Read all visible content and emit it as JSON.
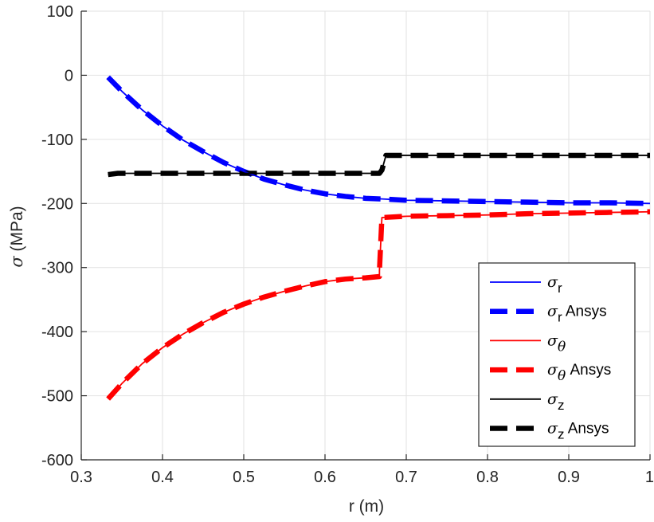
{
  "chart_data": {
    "type": "line",
    "xlabel": "r (m)",
    "ylabel_symbol": "σ",
    "ylabel_rest": " (MPa)",
    "xlim": [
      0.3,
      1.0
    ],
    "ylim": [
      -600,
      100
    ],
    "xticks": [
      0.3,
      0.4,
      0.5,
      0.6,
      0.7,
      0.8,
      0.9,
      1.0
    ],
    "xtick_labels": [
      "0.3",
      "0.4",
      "0.5",
      "0.6",
      "0.7",
      "0.8",
      "0.9",
      "1"
    ],
    "yticks": [
      100,
      0,
      -100,
      -200,
      -300,
      -400,
      -500,
      -600
    ],
    "ytick_labels": [
      "100",
      "0",
      "-100",
      "-200",
      "-300",
      "-400",
      "-500",
      "-600"
    ],
    "grid": true,
    "legend_position": "lower-right",
    "series": [
      {
        "name": "σr",
        "symbol": "σ",
        "sub": "r",
        "suffix": "",
        "color": "#0000ff",
        "style": "solid",
        "x": [
          0.333,
          0.35,
          0.375,
          0.4,
          0.425,
          0.45,
          0.475,
          0.5,
          0.525,
          0.55,
          0.575,
          0.6,
          0.625,
          0.65,
          0.67,
          0.7,
          0.75,
          0.8,
          0.85,
          0.9,
          0.95,
          1.0
        ],
        "y": [
          -3,
          -25,
          -54,
          -79,
          -101,
          -119,
          -136,
          -150,
          -162,
          -171,
          -179,
          -185,
          -189,
          -192,
          -193,
          -195,
          -196,
          -197,
          -198,
          -199,
          -199,
          -200
        ]
      },
      {
        "name": "σr Ansys",
        "symbol": "σ",
        "sub": "r",
        "suffix": " Ansys",
        "color": "#0000ff",
        "style": "dashed",
        "x": [
          0.333,
          0.35,
          0.375,
          0.4,
          0.425,
          0.45,
          0.475,
          0.5,
          0.525,
          0.55,
          0.575,
          0.6,
          0.625,
          0.65,
          0.67,
          0.7,
          0.75,
          0.8,
          0.85,
          0.9,
          0.95,
          1.0
        ],
        "y": [
          -3,
          -25,
          -54,
          -79,
          -101,
          -119,
          -136,
          -150,
          -162,
          -171,
          -179,
          -185,
          -189,
          -192,
          -193,
          -195,
          -196,
          -197,
          -198,
          -199,
          -199,
          -200
        ]
      },
      {
        "name": "σθ",
        "symbol": "σ",
        "sub": "θ",
        "suffix": "",
        "color": "#ff0000",
        "style": "solid",
        "x": [
          0.333,
          0.35,
          0.375,
          0.4,
          0.425,
          0.45,
          0.475,
          0.5,
          0.525,
          0.55,
          0.575,
          0.6,
          0.625,
          0.65,
          0.667,
          0.667,
          0.67,
          0.7,
          0.75,
          0.8,
          0.85,
          0.9,
          0.95,
          1.0
        ],
        "y": [
          -505,
          -481,
          -450,
          -425,
          -404,
          -386,
          -370,
          -357,
          -346,
          -337,
          -329,
          -322,
          -318,
          -316,
          -314,
          -305,
          -222,
          -220,
          -219,
          -218,
          -216,
          -215,
          -214,
          -213
        ]
      },
      {
        "name": "σθ Ansys",
        "symbol": "σ",
        "sub": "θ",
        "suffix": " Ansys",
        "color": "#ff0000",
        "style": "dashed",
        "x": [
          0.333,
          0.35,
          0.375,
          0.4,
          0.425,
          0.45,
          0.475,
          0.5,
          0.525,
          0.55,
          0.575,
          0.6,
          0.625,
          0.65,
          0.667,
          0.667,
          0.67,
          0.7,
          0.75,
          0.8,
          0.85,
          0.9,
          0.95,
          1.0
        ],
        "y": [
          -505,
          -481,
          -450,
          -425,
          -404,
          -386,
          -370,
          -357,
          -346,
          -337,
          -329,
          -322,
          -318,
          -316,
          -314,
          -305,
          -222,
          -220,
          -219,
          -218,
          -216,
          -215,
          -214,
          -213
        ]
      },
      {
        "name": "σz",
        "symbol": "σ",
        "sub": "z",
        "suffix": "",
        "color": "#000000",
        "style": "solid",
        "x": [
          0.333,
          0.345,
          0.667,
          0.67,
          0.675,
          1.0
        ],
        "y": [
          -155,
          -153,
          -153,
          -148,
          -125,
          -125
        ]
      },
      {
        "name": "σz Ansys",
        "symbol": "σ",
        "sub": "z",
        "suffix": " Ansys",
        "color": "#000000",
        "style": "dashed",
        "x": [
          0.333,
          0.345,
          0.667,
          0.67,
          0.675,
          1.0
        ],
        "y": [
          -155,
          -153,
          -153,
          -148,
          -125,
          -125
        ]
      }
    ]
  }
}
